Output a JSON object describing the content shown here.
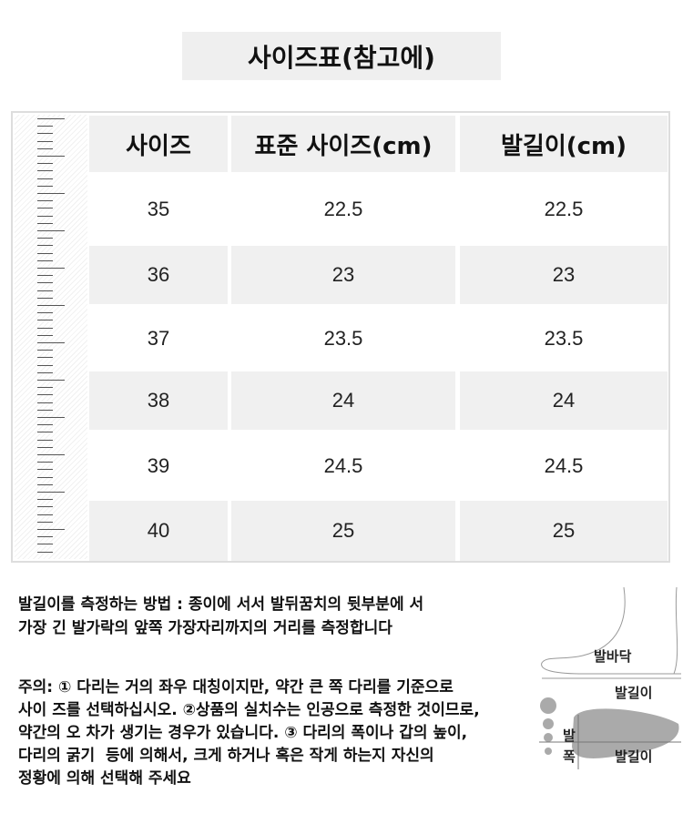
{
  "title": "사이즈표(참고에)",
  "table": {
    "headers": [
      "사이즈",
      "표준 사이즈(cm)",
      "발길이(cm)"
    ],
    "rows": [
      [
        "35",
        "22.5",
        "22.5"
      ],
      [
        "36",
        "23",
        "23"
      ],
      [
        "37",
        "23.5",
        "23.5"
      ],
      [
        "38",
        "24",
        "24"
      ],
      [
        "39",
        "24.5",
        "24.5"
      ],
      [
        "40",
        "25",
        "25"
      ]
    ]
  },
  "measure_text": [
    "발길이를 측정하는 방법 : 종이에 서서 발뒤꿈치의 뒷부분에 서",
    "가장 긴 발가락의 앞쪽 가장자리까지의 거리를 측정합니다"
  ],
  "note_text": [
    "주의: ① 다리는 거의 좌우 대칭이지만, 약간 큰 쪽 다리를 기준으로",
    "사이 즈를 선택하십시오. ②상품의 실치수는 인공으로 측정한 것이므로,",
    "약간의 오 차가 생기는 경우가 있습니다. ③ 다리의 폭이나 갑의 높이,",
    "다리의 굵기  등에 의해서, 크게 하거나 혹은 작게 하는지 자신의",
    "정황에 의해 선택해 주세요"
  ],
  "diagram": {
    "sole": "발바닥",
    "length_top": "발길이",
    "width_1": "발",
    "width_2": "폭",
    "length_bottom": "발길이"
  }
}
